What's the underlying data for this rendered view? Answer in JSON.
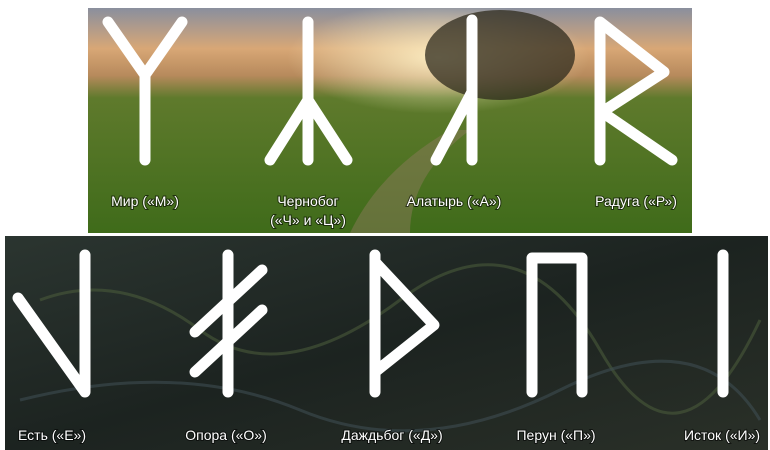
{
  "top_row": {
    "runes": [
      {
        "lines": [
          "Мир («М»)"
        ]
      },
      {
        "lines": [
          "Чернобог",
          "(«Ч» и «Ц»)"
        ]
      },
      {
        "lines": [
          "Алатырь («А»)"
        ]
      },
      {
        "lines": [
          "Радуга («Р»)"
        ]
      }
    ]
  },
  "bottom_row": {
    "runes": [
      {
        "lines": [
          "Есть («Е»)"
        ]
      },
      {
        "lines": [
          "Опора («О»)"
        ]
      },
      {
        "lines": [
          "Даждьбог («Д»)"
        ]
      },
      {
        "lines": [
          "Перун («П»)"
        ]
      },
      {
        "lines": [
          "Исток («И»)"
        ]
      }
    ]
  }
}
